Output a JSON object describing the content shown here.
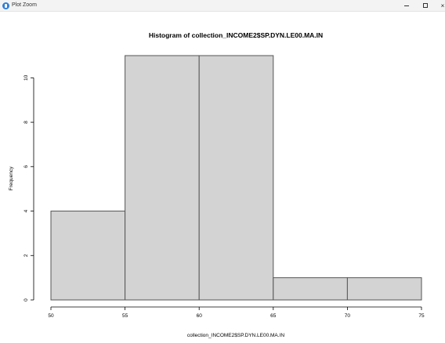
{
  "window": {
    "title": "Plot Zoom",
    "minimize_icon": "minimize-icon",
    "maximize_icon": "maximize-icon",
    "close_label": "×"
  },
  "chart_data": {
    "type": "bar",
    "histogram": true,
    "title": "Histogram of collection_INCOME2$SP.DYN.LE00.MA.IN",
    "xlabel": "collection_INCOME2$SP.DYN.LE00.MA.IN",
    "ylabel": "Frequency",
    "bins": [
      {
        "from": 50,
        "to": 55,
        "count": 4
      },
      {
        "from": 55,
        "to": 60,
        "count": 11
      },
      {
        "from": 60,
        "to": 65,
        "count": 11
      },
      {
        "from": 65,
        "to": 70,
        "count": 1
      },
      {
        "from": 70,
        "to": 75,
        "count": 1
      }
    ],
    "xlim": [
      50,
      75
    ],
    "ylim": [
      0,
      11
    ],
    "x_ticks": [
      "50",
      "55",
      "60",
      "65",
      "70",
      "75"
    ],
    "y_ticks": [
      "0",
      "2",
      "4",
      "6",
      "8",
      "10"
    ],
    "grid": false,
    "bar_fill": "#d3d3d3",
    "bar_stroke": "#555555"
  }
}
